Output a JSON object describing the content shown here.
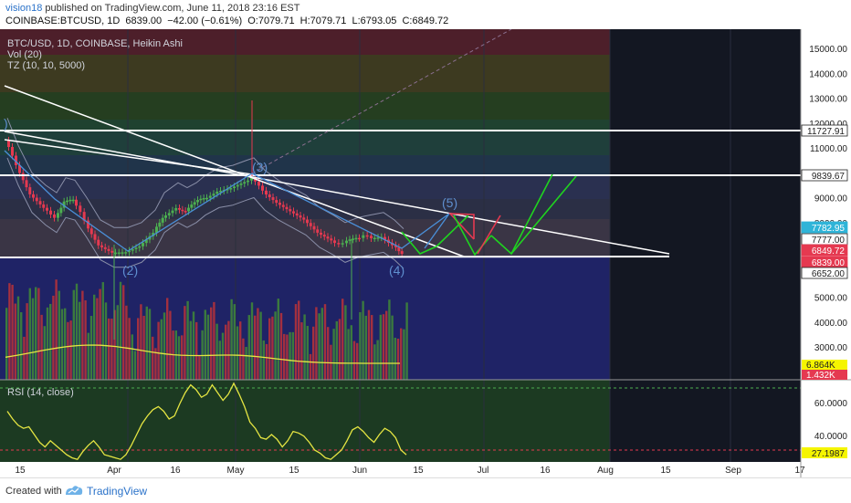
{
  "header": {
    "author": "vision18",
    "published": " published on TradingView.com, June 11, 2018 23:16 EST",
    "symbol": "COINBASE:BTCUSD, 1D",
    "price": "6839.00",
    "change": "−42.00 (−0.61%)",
    "open": "O:7079.71",
    "high": "H:7079.71",
    "low": "L:6793.05",
    "close": "C:6849.72"
  },
  "legend": {
    "title": "BTC/USD, 1D, COINBASE, Heikin Ashi",
    "vol": "Vol (20)",
    "tz": "TZ (10, 10, 5000)",
    "rsi": "RSI (14, close)"
  },
  "footer": {
    "made_with": "Created with",
    "brand": "TradingView"
  },
  "colors": {
    "up": "#4caf50",
    "down": "#e53950",
    "rsi_line": "#e5e542",
    "vol_ma": "#e5e542",
    "axis_text": "#222222"
  },
  "chart_data": {
    "type": "candlestick",
    "style": "Heikin Ashi",
    "y_axis": {
      "ticks": [
        15000,
        14000,
        13000,
        12000,
        11000,
        10000,
        9000,
        8000,
        7000,
        6000,
        5000,
        4000,
        3000
      ],
      "tick_labels": [
        "15000.00",
        "14000.00",
        "13000.00",
        "12000.00",
        "11000.00",
        "10000.00",
        "9000.00",
        "8000.00",
        "7000.00",
        "6000.00",
        "5000.00",
        "4000.00",
        "3000.00"
      ],
      "range": [
        2000,
        15700
      ]
    },
    "x_axis": {
      "tick_labels": [
        "15",
        "Apr",
        "16",
        "May",
        "15",
        "Jun",
        "15",
        "Jul",
        "16",
        "Aug",
        "15",
        "Sep",
        "17"
      ]
    },
    "price_labels": [
      {
        "text": "11727.91",
        "value": 11727.91,
        "style": "white"
      },
      {
        "text": "9839.67",
        "value": 9839.67,
        "style": "white"
      },
      {
        "text": "7782.95",
        "value": 7782.95,
        "style": "cyan"
      },
      {
        "text": "7777.00",
        "value": 7777.0,
        "style": "white"
      },
      {
        "text": "6849.72",
        "value": 6849.72,
        "style": "red"
      },
      {
        "text": "6839.00",
        "value": 6839.0,
        "style": "red"
      },
      {
        "text": "6652.00",
        "value": 6652.0,
        "style": "white"
      }
    ],
    "vol_labels": [
      {
        "text": "6.864K",
        "style": "yellow"
      },
      {
        "text": "1.432K",
        "style": "red"
      }
    ],
    "rsi": {
      "ticks": [
        60,
        40
      ],
      "tick_labels": [
        "60.0000",
        "40.0000"
      ],
      "last_label": "27.1987",
      "range": [
        18,
        78
      ],
      "upper_band": 70,
      "lower_band": 30,
      "values": [
        55,
        50,
        46,
        44,
        45,
        40,
        35,
        32,
        36,
        33,
        30,
        27,
        25,
        24,
        29,
        33,
        36,
        32,
        27,
        26,
        25,
        24,
        27,
        33,
        40,
        47,
        52,
        56,
        58,
        55,
        50,
        52,
        60,
        67,
        72,
        69,
        64,
        66,
        72,
        67,
        62,
        66,
        73,
        66,
        58,
        48,
        44,
        38,
        37,
        40,
        37,
        32,
        36,
        42,
        41,
        39,
        35,
        30,
        28,
        25,
        24,
        27,
        30,
        36,
        43,
        45,
        42,
        38,
        35,
        40,
        44,
        42,
        38,
        30,
        27
      ]
    },
    "wave_labels": [
      "(2)",
      "(3)",
      "(4)",
      "(5)"
    ],
    "annotations": [
      "Elliott wave count with projected up/down arrows"
    ]
  }
}
